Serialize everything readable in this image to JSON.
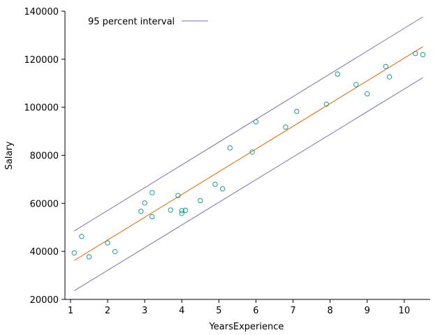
{
  "chart_data": {
    "type": "scatter",
    "title": "",
    "xlabel": "YearsExperience",
    "ylabel": "Salary",
    "xlim": [
      0.85,
      10.7
    ],
    "ylim": [
      20000,
      140000
    ],
    "xticks": [
      1,
      2,
      3,
      4,
      5,
      6,
      7,
      8,
      9,
      10
    ],
    "yticks": [
      20000,
      40000,
      60000,
      80000,
      100000,
      120000,
      140000
    ],
    "grid": false,
    "legend": {
      "position": "top-left",
      "entries": [
        "95 percent interval"
      ]
    },
    "colors": {
      "points": "#1f9e89",
      "fit": "#e66101",
      "interval": "#7b6fc0"
    },
    "points": {
      "x": [
        1.1,
        1.3,
        1.5,
        2.0,
        2.2,
        2.9,
        3.0,
        3.2,
        3.2,
        3.7,
        3.9,
        4.0,
        4.0,
        4.1,
        4.5,
        4.9,
        5.1,
        5.3,
        5.9,
        6.0,
        6.8,
        7.1,
        7.9,
        8.2,
        8.7,
        9.0,
        9.5,
        9.6,
        10.3,
        10.5
      ],
      "y": [
        39343,
        46205,
        37731,
        43525,
        39891,
        56642,
        60150,
        54445,
        64445,
        57189,
        63218,
        55794,
        56957,
        57081,
        61111,
        67938,
        66029,
        83088,
        81363,
        93940,
        91738,
        98273,
        101302,
        113812,
        109431,
        105582,
        116969,
        112635,
        122391,
        121872
      ]
    },
    "fit_line": {
      "x": [
        1.1,
        10.5
      ],
      "y": [
        36200,
        125200
      ]
    },
    "upper_interval": {
      "name": "95 percent interval",
      "x": [
        1.1,
        10.5
      ],
      "y": [
        48500,
        137600
      ]
    },
    "lower_interval": {
      "x": [
        1.1,
        10.5
      ],
      "y": [
        23600,
        112300
      ]
    }
  }
}
